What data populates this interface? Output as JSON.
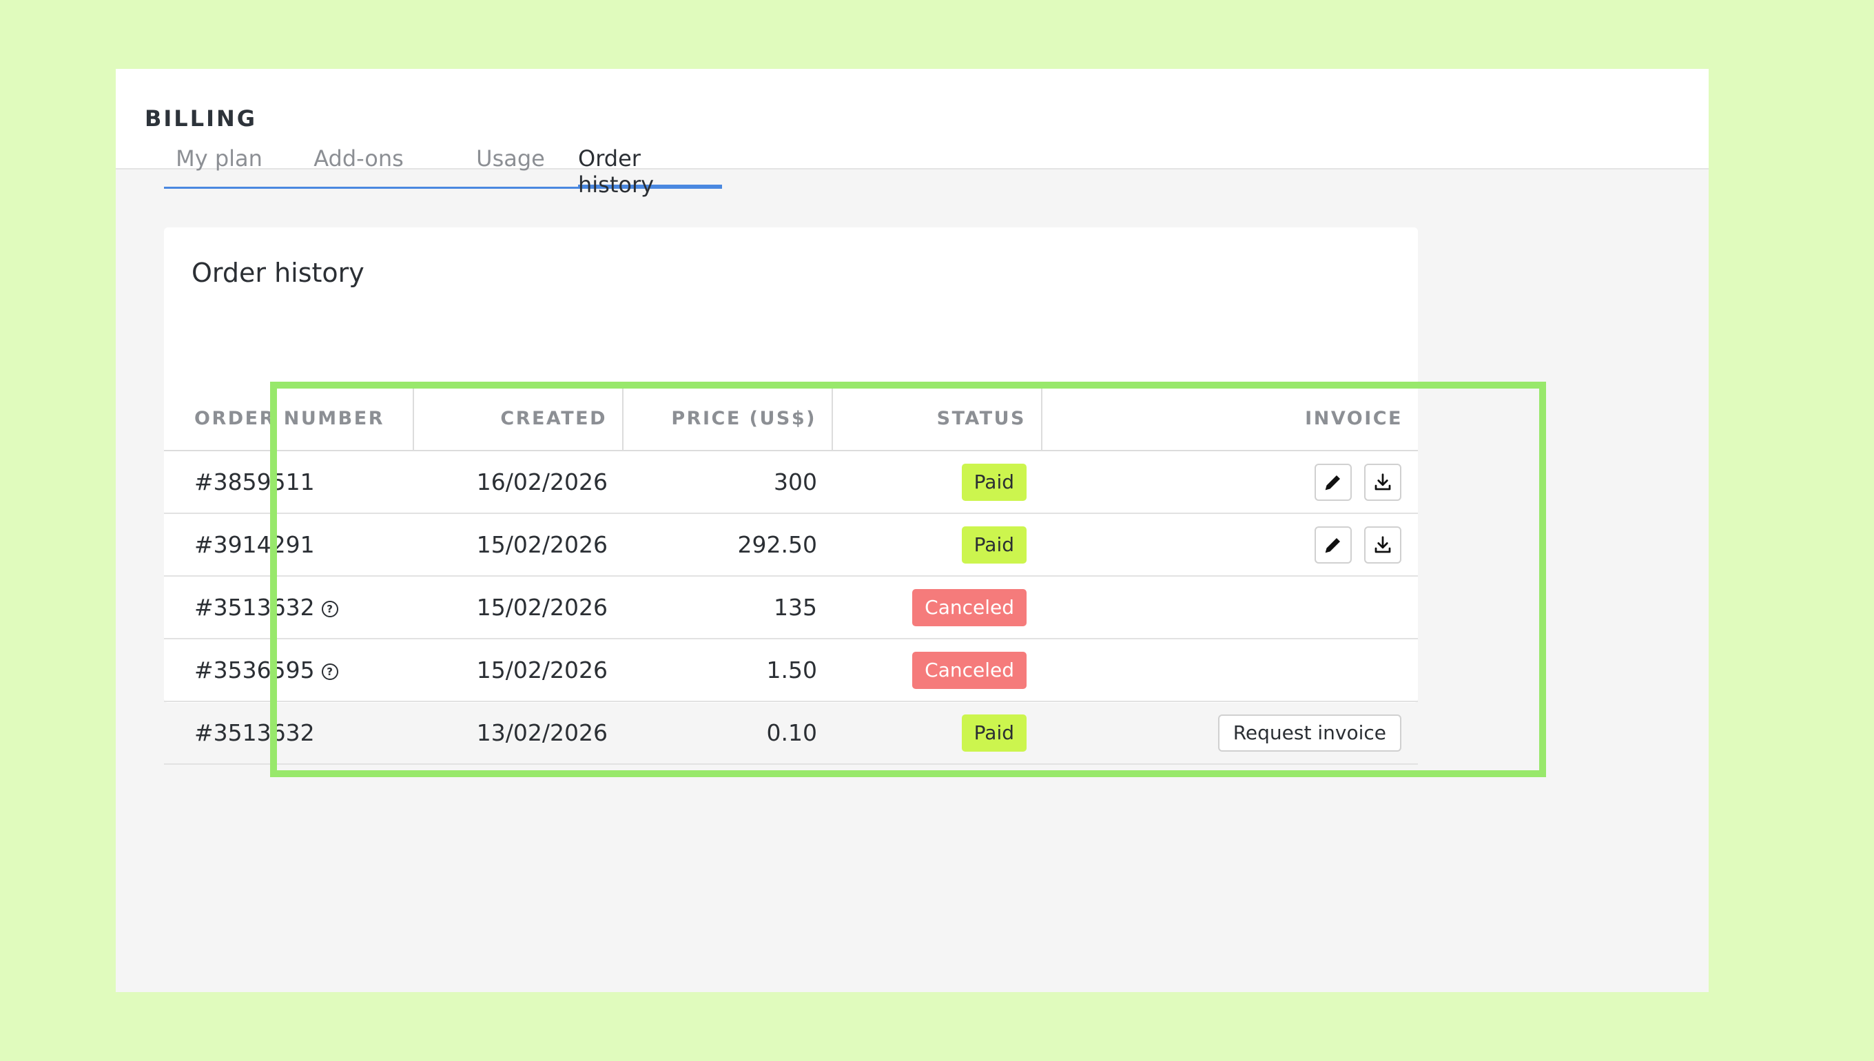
{
  "header": {
    "title": "BILLING"
  },
  "tabs": [
    {
      "label": "My plan",
      "active": false
    },
    {
      "label": "Add-ons",
      "active": false
    },
    {
      "label": "Usage",
      "active": false
    },
    {
      "label": "Order history",
      "active": true
    }
  ],
  "card": {
    "title": "Order history"
  },
  "table": {
    "columns": [
      "ORDER NUMBER",
      "CREATED",
      "PRICE (US$)",
      "STATUS",
      "INVOICE"
    ],
    "rows": [
      {
        "order": "#3859511",
        "help": false,
        "created": "16/02/2026",
        "price": "300",
        "status": "Paid",
        "invoice": "icons"
      },
      {
        "order": "#3914291",
        "help": false,
        "created": "15/02/2026",
        "price": "292.50",
        "status": "Paid",
        "invoice": "icons"
      },
      {
        "order": "#3513632",
        "help": true,
        "created": "15/02/2026",
        "price": "135",
        "status": "Canceled",
        "invoice": "none"
      },
      {
        "order": "#3536595",
        "help": true,
        "created": "15/02/2026",
        "price": "1.50",
        "status": "Canceled",
        "invoice": "none"
      },
      {
        "order": "#3513632",
        "help": false,
        "created": "13/02/2026",
        "price": "0.10",
        "status": "Paid",
        "invoice": "request"
      }
    ],
    "request_invoice_label": "Request invoice",
    "help_glyph": "?"
  },
  "colors": {
    "paid_bg": "#ccf54e",
    "paid_text": "#2b2f34",
    "canceled_bg": "#f57b7b",
    "canceled_text": "#ffffff",
    "accent": "#4a88e0",
    "highlight": "#98e86b"
  },
  "icons": {
    "edit": "pencil-icon",
    "download": "download-icon",
    "help": "question-circle-icon"
  }
}
